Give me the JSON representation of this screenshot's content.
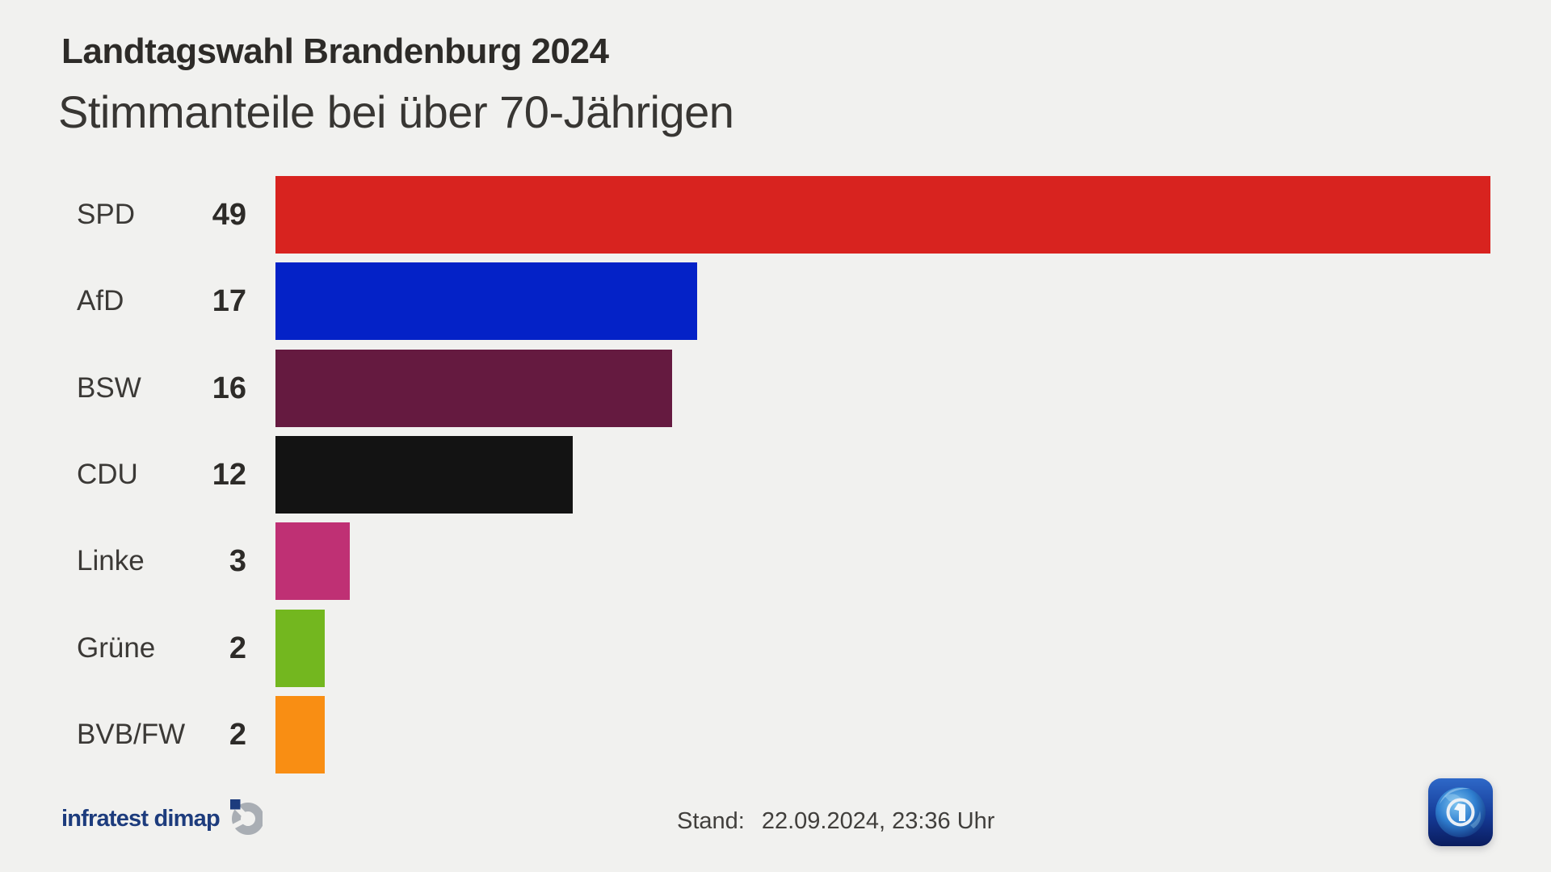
{
  "header": {
    "title": "Landtagswahl Brandenburg 2024",
    "subtitle": "Stimmanteile bei über 70-Jährigen"
  },
  "chart_data": {
    "type": "bar",
    "orientation": "horizontal",
    "title": "Landtagswahl Brandenburg 2024",
    "subtitle": "Stimmanteile bei über 70-Jährigen",
    "categories": [
      "SPD",
      "AfD",
      "BSW",
      "CDU",
      "Linke",
      "Grüne",
      "BVB/FW"
    ],
    "values": [
      49,
      17,
      16,
      12,
      3,
      2,
      2
    ],
    "colors": [
      "#d8231f",
      "#0422c7",
      "#651a40",
      "#131313",
      "#bf3074",
      "#73b71f",
      "#f98e13"
    ],
    "xlim": [
      0,
      49
    ],
    "grid": false,
    "legend": false,
    "value_labels_position": "left-of-bar"
  },
  "footer": {
    "source_wordmark": "infratest dimap",
    "stand_label": "Stand:",
    "stand_value": "22.09.2024, 23:36 Uhr"
  },
  "icons": {
    "infratest_dimap_logo": "infratest-dimap-mark",
    "ard_logo": "ard-tagesschau-globe"
  },
  "theme": {
    "background": "#f1f1ef",
    "title_color": "#2d2b28",
    "subtitle_color": "#383633",
    "label_color": "#3b3936",
    "value_color": "#2d2b28",
    "stand_color": "#413f3c",
    "infratest_blue": "#1d3c7d",
    "infratest_gray": "#a9aeb4"
  }
}
